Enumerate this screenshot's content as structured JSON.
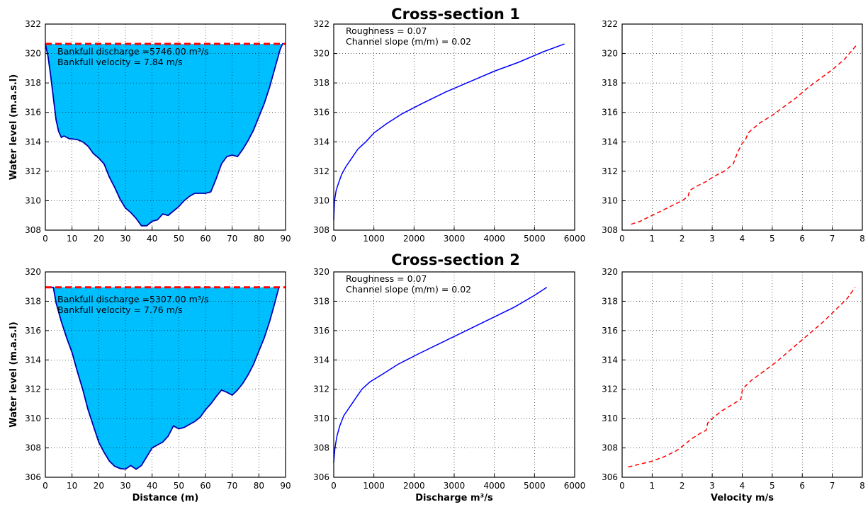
{
  "figure": {
    "titles": [
      "Cross-section 1",
      "Cross-section 2"
    ]
  },
  "chart_data": [
    {
      "type": "area",
      "panel": "cross-section-1-profile",
      "ylabel": "Water level (m.a.s.l)",
      "xlabel": "",
      "xlim": [
        0,
        90
      ],
      "ylim": [
        308,
        322
      ],
      "xticks": [
        0,
        10,
        20,
        30,
        40,
        50,
        60,
        70,
        80,
        90
      ],
      "yticks": [
        308,
        310,
        312,
        314,
        316,
        318,
        320,
        322
      ],
      "grid": true,
      "fill_color": "#00bfff",
      "line_color": "#0000aa",
      "bankfull_color": "#ff0000",
      "bankfull_level": 320.65,
      "annotations": [
        "Bankfull discharge =5746.00 m³/s",
        "Bankfull velocity = 7.84 m/s"
      ],
      "x": [
        0,
        1,
        2,
        3,
        4,
        5,
        6,
        7,
        8,
        9,
        10,
        12,
        14,
        16,
        18,
        20,
        22,
        24,
        26,
        28,
        30,
        32,
        34,
        36,
        38,
        40,
        42,
        44,
        46,
        48,
        50,
        52,
        54,
        56,
        58,
        60,
        62,
        64,
        66,
        68,
        70,
        72,
        74,
        76,
        78,
        80,
        82,
        84,
        86,
        88,
        89
      ],
      "y": [
        320.65,
        319.8,
        318.5,
        317.0,
        315.5,
        314.7,
        314.3,
        314.4,
        314.3,
        314.2,
        314.2,
        314.15,
        314.0,
        313.7,
        313.2,
        312.9,
        312.5,
        311.6,
        310.9,
        310.1,
        309.5,
        309.2,
        308.8,
        308.3,
        308.3,
        308.6,
        308.7,
        309.1,
        309.0,
        309.3,
        309.6,
        310.0,
        310.3,
        310.5,
        310.5,
        310.5,
        310.6,
        311.5,
        312.5,
        313.0,
        313.1,
        313.0,
        313.5,
        314.1,
        314.8,
        315.7,
        316.6,
        317.7,
        319.0,
        320.3,
        320.7
      ]
    },
    {
      "type": "line",
      "panel": "cross-section-1-rating",
      "xlim": [
        0,
        6000
      ],
      "ylim": [
        308,
        322
      ],
      "xticks": [
        0,
        1000,
        2000,
        3000,
        4000,
        5000,
        6000
      ],
      "yticks": [
        308,
        310,
        312,
        314,
        316,
        318,
        320,
        322
      ],
      "grid": true,
      "line_color": "#0000ff",
      "annotations": [
        "Roughness = 0.07",
        "Channel slope (m/m) = 0.02"
      ],
      "x": [
        0,
        20,
        60,
        120,
        200,
        300,
        450,
        600,
        800,
        1000,
        1300,
        1700,
        2200,
        2800,
        3400,
        4000,
        4600,
        5200,
        5746
      ],
      "y": [
        308.7,
        310.0,
        310.7,
        311.2,
        311.8,
        312.3,
        312.9,
        313.5,
        314.0,
        314.6,
        315.2,
        315.9,
        316.6,
        317.4,
        318.1,
        318.8,
        319.4,
        320.1,
        320.65
      ]
    },
    {
      "type": "line",
      "panel": "cross-section-1-velocity",
      "xlim": [
        0,
        8
      ],
      "ylim": [
        308,
        322
      ],
      "xticks": [
        0,
        1,
        2,
        3,
        4,
        5,
        6,
        7,
        8
      ],
      "yticks": [
        308,
        310,
        312,
        314,
        316,
        318,
        320,
        322
      ],
      "grid": true,
      "line_color": "#ff0000",
      "line_style": "dashed",
      "x": [
        0.3,
        0.6,
        0.9,
        1.2,
        1.5,
        1.8,
        2.0,
        2.2,
        2.25,
        2.5,
        2.8,
        3.1,
        3.4,
        3.7,
        3.85,
        4.0,
        4.1,
        4.2,
        4.3,
        4.6,
        5.0,
        5.4,
        5.8,
        6.2,
        6.6,
        7.0,
        7.4,
        7.84
      ],
      "y": [
        308.4,
        308.6,
        308.9,
        309.2,
        309.5,
        309.8,
        310.0,
        310.3,
        310.7,
        311.0,
        311.3,
        311.7,
        312.0,
        312.5,
        313.3,
        313.9,
        314.1,
        314.6,
        314.8,
        315.3,
        315.8,
        316.4,
        317.0,
        317.7,
        318.3,
        318.9,
        319.6,
        320.65
      ]
    },
    {
      "type": "area",
      "panel": "cross-section-2-profile",
      "ylabel": "Water level (m.a.s.l)",
      "xlabel": "Distance (m)",
      "xlim": [
        0,
        90
      ],
      "ylim": [
        306,
        320
      ],
      "xticks": [
        0,
        10,
        20,
        30,
        40,
        50,
        60,
        70,
        80,
        90
      ],
      "yticks": [
        306,
        308,
        310,
        312,
        314,
        316,
        318,
        320
      ],
      "grid": true,
      "fill_color": "#00bfff",
      "line_color": "#0000aa",
      "bankfull_color": "#ff0000",
      "bankfull_level": 318.95,
      "annotations": [
        "Bankfull discharge =5307.00 m³/s",
        "Bankfull velocity = 7.76 m/s"
      ],
      "x": [
        0,
        3,
        4,
        6,
        8,
        10,
        12,
        14,
        16,
        18,
        20,
        22,
        24,
        26,
        28,
        30,
        32,
        34,
        36,
        38,
        40,
        42,
        44,
        46,
        48,
        50,
        52,
        54,
        56,
        58,
        60,
        62,
        64,
        66,
        68,
        70,
        72,
        74,
        76,
        78,
        80,
        82,
        84,
        86,
        87.5
      ],
      "y": [
        318.95,
        318.95,
        317.9,
        316.6,
        315.5,
        314.5,
        313.2,
        312.0,
        310.6,
        309.5,
        308.4,
        307.7,
        307.1,
        306.75,
        306.6,
        306.55,
        306.8,
        306.55,
        306.8,
        307.4,
        308.0,
        308.2,
        308.4,
        308.8,
        309.5,
        309.3,
        309.4,
        309.6,
        309.8,
        310.1,
        310.6,
        311.0,
        311.5,
        311.95,
        311.8,
        311.6,
        311.95,
        312.4,
        313.0,
        313.7,
        314.6,
        315.5,
        316.6,
        317.9,
        318.95
      ]
    },
    {
      "type": "line",
      "panel": "cross-section-2-rating",
      "xlabel": "Discharge m³/s",
      "xlim": [
        0,
        6000
      ],
      "ylim": [
        306,
        320
      ],
      "xticks": [
        0,
        1000,
        2000,
        3000,
        4000,
        5000,
        6000
      ],
      "yticks": [
        306,
        308,
        310,
        312,
        314,
        316,
        318,
        320
      ],
      "grid": true,
      "line_color": "#0000ff",
      "annotations": [
        "Roughness = 0.07",
        "Channel slope (m/m) = 0.02"
      ],
      "x": [
        0,
        30,
        80,
        150,
        250,
        400,
        550,
        700,
        900,
        1200,
        1600,
        2100,
        2700,
        3300,
        3900,
        4500,
        5000,
        5307
      ],
      "y": [
        307.0,
        308.0,
        308.8,
        309.5,
        310.2,
        310.8,
        311.4,
        312.0,
        312.5,
        313.0,
        313.7,
        314.4,
        315.2,
        316.0,
        316.8,
        317.6,
        318.4,
        318.95
      ]
    },
    {
      "type": "line",
      "panel": "cross-section-2-velocity",
      "xlabel": "Velocity m/s",
      "xlim": [
        0,
        8
      ],
      "ylim": [
        306,
        320
      ],
      "xticks": [
        0,
        1,
        2,
        3,
        4,
        5,
        6,
        7,
        8
      ],
      "yticks": [
        306,
        308,
        310,
        312,
        314,
        316,
        318,
        320
      ],
      "grid": true,
      "line_color": "#ff0000",
      "line_style": "dashed",
      "x": [
        0.2,
        0.6,
        1.0,
        1.4,
        1.8,
        2.0,
        2.3,
        2.6,
        2.8,
        2.85,
        3.0,
        3.3,
        3.7,
        3.95,
        4.0,
        4.05,
        4.3,
        4.7,
        5.1,
        5.5,
        5.9,
        6.3,
        6.7,
        7.1,
        7.5,
        7.76
      ],
      "y": [
        306.7,
        306.9,
        307.1,
        307.4,
        307.8,
        308.1,
        308.6,
        309.0,
        309.2,
        309.7,
        310.0,
        310.5,
        311.0,
        311.3,
        311.9,
        312.1,
        312.6,
        313.2,
        313.8,
        314.5,
        315.2,
        315.9,
        316.6,
        317.4,
        318.2,
        318.95
      ]
    }
  ]
}
